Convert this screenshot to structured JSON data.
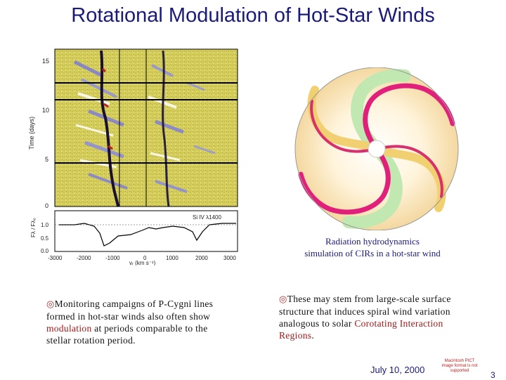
{
  "slide": {
    "title": "Rotational Modulation of Hot-Star Winds",
    "footer_date": "July 10, 2000",
    "page_number": "3",
    "pict_note": "Macintosh PICT image format is not supported"
  },
  "spectrum_figure": {
    "ylabel": "Time (days)",
    "y_ticks": [
      "15",
      "10",
      "5",
      "0"
    ],
    "profile_ylabel": "Fλ / Fλ₀",
    "profile_ticks": [
      "1.0",
      "0.5",
      "0.0"
    ],
    "x_ticks": [
      "-3000",
      "-2000",
      "-1000",
      "0",
      "1000",
      "2000",
      "3000"
    ],
    "xlabel": "vᵣ (km s⁻¹)",
    "line_label": "Si IV λ1400"
  },
  "simulation": {
    "caption_line1": "Radiation hydrodynamics",
    "caption_line2": "simulation of CIRs in a hot-star wind"
  },
  "bullets": {
    "left_text_1": "Monitoring campaigns of P-Cygni lines formed in hot-star winds also often show ",
    "left_highlight": "modulation",
    "left_text_2": " at periods comparable to the stellar rotation period.",
    "right_text_1": "These may stem from large-scale surface structure that induces spiral wind variation analogous to solar ",
    "right_highlight": "Corotating Interaction Regions",
    "right_text_2": "."
  },
  "colors": {
    "title": "#1a1a7a",
    "highlight": "#a01818",
    "bullet_mark": "#b03030",
    "spectrum_background": "#d8d060",
    "spiral_magenta": "#e0207a"
  }
}
